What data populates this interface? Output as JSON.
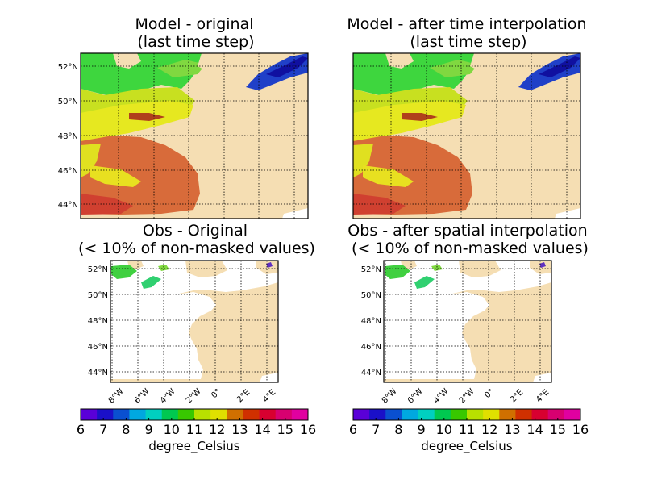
{
  "panels": {
    "model_original": {
      "title_line1": "Model - original",
      "title_line2": "(last time step)"
    },
    "model_interp": {
      "title_line1": "Model - after time interpolation",
      "title_line2": "(last time step)"
    },
    "obs_original": {
      "title_line1": "Obs - Original",
      "title_line2": "(< 10% of non-masked values)"
    },
    "obs_interp": {
      "title_line1": "Obs - after spatial interpolation",
      "title_line2": "(< 10% of non-masked values)"
    }
  },
  "lat_labels": [
    "52°N",
    "50°N",
    "48°N",
    "46°N",
    "44°N"
  ],
  "lon_labels": [
    "8°W",
    "6°W",
    "4°W",
    "2°W",
    "0°",
    "2°E",
    "4°E"
  ],
  "colorbar": {
    "ticks": [
      "6",
      "7",
      "8",
      "9",
      "10",
      "11",
      "12",
      "13",
      "14",
      "15",
      "16"
    ],
    "unit": "degree_Celsius",
    "colors": [
      "#5a00d8",
      "#1a10c8",
      "#0a50d0",
      "#00a8e0",
      "#00d0c0",
      "#00c850",
      "#38c800",
      "#b8e000",
      "#e0e000",
      "#d07000",
      "#d03000",
      "#d80030",
      "#d80070",
      "#e000a0"
    ]
  },
  "colors": {
    "land": "#f5deb3",
    "water_cold": "#40e020",
    "water_warm": "#e0e020",
    "water_hot": "#d86030",
    "water_deep_cold": "#2020c0"
  }
}
